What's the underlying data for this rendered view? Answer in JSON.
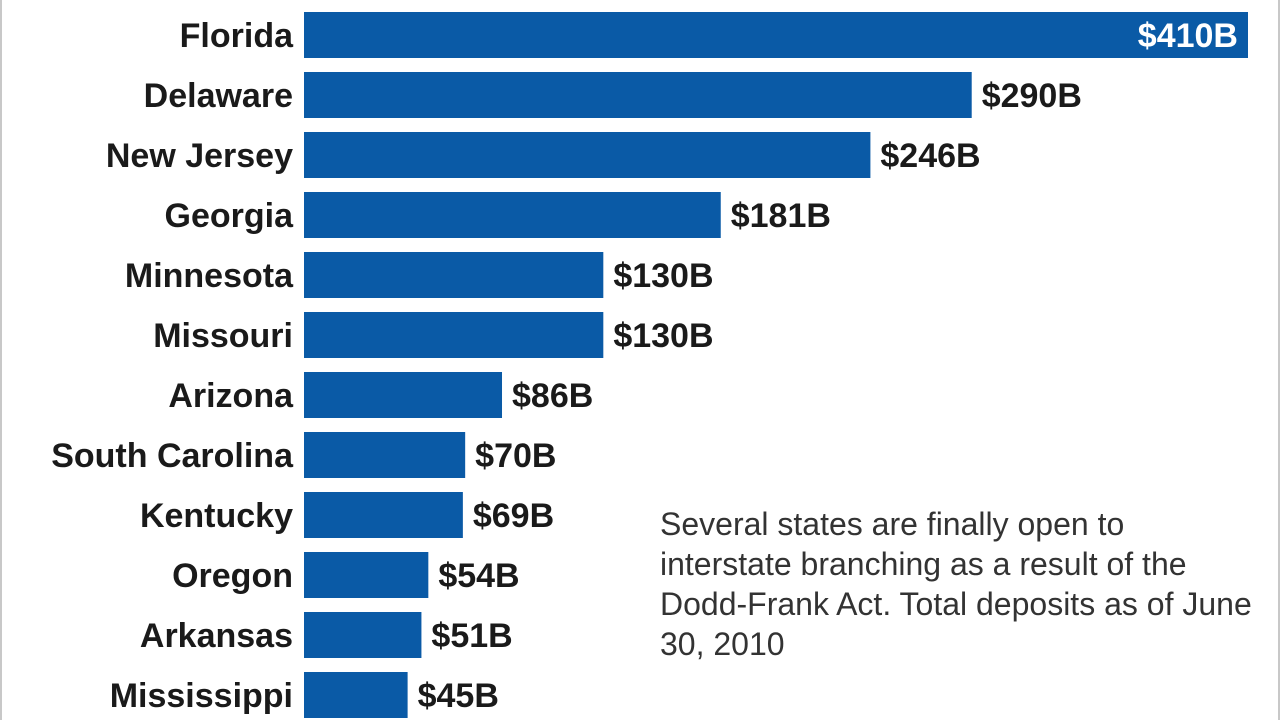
{
  "colors": {
    "bar": "#0a5aa6",
    "label_text": "#1a1a1a",
    "inside_label_text": "#ffffff",
    "note_text": "#333333"
  },
  "chart_data": {
    "type": "bar",
    "orientation": "horizontal",
    "categories": [
      "Florida",
      "Delaware",
      "New Jersey",
      "Georgia",
      "Minnesota",
      "Missouri",
      "Arizona",
      "South Carolina",
      "Kentucky",
      "Oregon",
      "Arkansas",
      "Mississippi"
    ],
    "values": [
      410,
      290,
      246,
      181,
      130,
      130,
      86,
      70,
      69,
      54,
      51,
      45
    ],
    "value_labels": [
      "$410B",
      "$290B",
      "$246B",
      "$181B",
      "$130B",
      "$130B",
      "$86B",
      "$70B",
      "$69B",
      "$54B",
      "$51B",
      "$45B"
    ],
    "unit": "$B",
    "xlim": [
      0,
      410
    ],
    "grid": false,
    "legend": "none"
  },
  "annotation": {
    "text": "Several states are finally open to interstate branching as a result of the Dodd-Frank Act. Total deposits as of June 30, 2010"
  }
}
